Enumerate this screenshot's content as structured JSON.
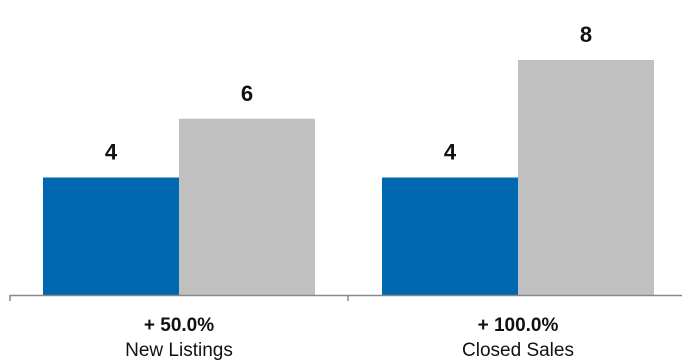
{
  "chart_data": {
    "type": "bar",
    "title": "",
    "xlabel": "",
    "ylabel": "",
    "categories": [
      "New Listings",
      "Closed Sales"
    ],
    "change_labels": [
      "+ 50.0%",
      "+ 100.0%"
    ],
    "series": [
      {
        "values": [
          4,
          4
        ],
        "color": "#0067b1"
      },
      {
        "values": [
          6,
          8
        ],
        "color": "#c0c0c0"
      }
    ],
    "ylim": [
      0,
      8
    ],
    "grid": false,
    "axis_color": "#888888"
  }
}
